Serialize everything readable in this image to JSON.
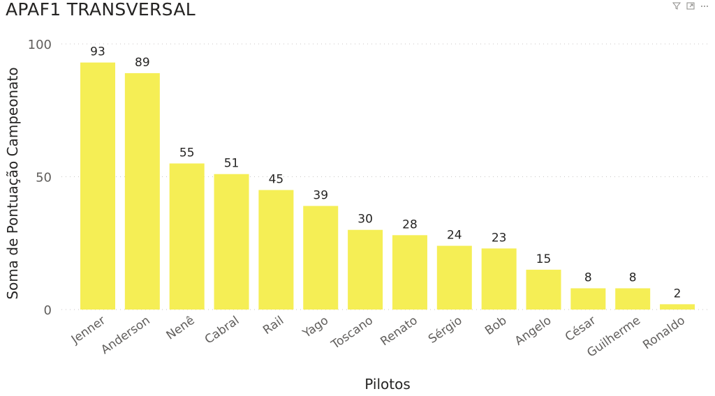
{
  "title": "APAF1 TRANSVERSAL",
  "toolbar": {
    "icons": [
      "filter-icon",
      "focus-mode-icon",
      "more-options-icon"
    ]
  },
  "chart_data": {
    "type": "bar",
    "title": "APAF1 TRANSVERSAL",
    "xlabel": "Pilotos",
    "ylabel": "Soma de Pontuação Campeonato",
    "categories": [
      "Jenner",
      "Anderson",
      "Nenê",
      "Cabral",
      "Rail",
      "Yago",
      "Toscano",
      "Renato",
      "Sérgio",
      "Bob",
      "Angelo",
      "César",
      "Guilherme",
      "Ronaldo"
    ],
    "values": [
      93,
      89,
      55,
      51,
      45,
      39,
      30,
      28,
      24,
      23,
      15,
      8,
      8,
      2
    ],
    "ylim": [
      0,
      100
    ],
    "yticks": [
      0,
      50,
      100
    ],
    "grid": true,
    "data_labels": true,
    "bar_color": "#F5EE55"
  }
}
